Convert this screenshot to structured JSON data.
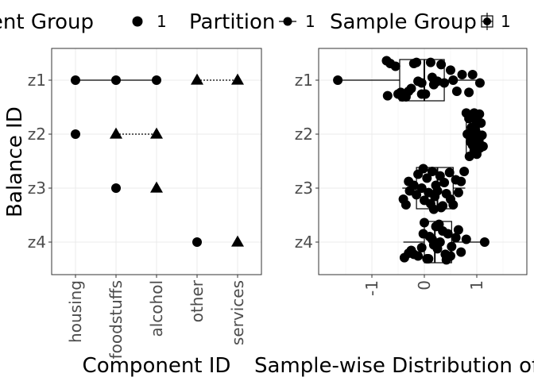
{
  "legend": {
    "component_group": {
      "title": "Component Group",
      "items": [
        "1"
      ]
    },
    "partition": {
      "title": "Partition",
      "items": [
        "1"
      ]
    },
    "sample_group": {
      "title": "Sample Group",
      "items": [
        "1"
      ]
    }
  },
  "chart_data": [
    {
      "type": "scatter",
      "title": "",
      "xlabel": "Component ID",
      "ylabel": "Balance ID",
      "x_categories": [
        "housing",
        "foodstuffs",
        "alcohol",
        "other",
        "services"
      ],
      "y_categories": [
        "z1",
        "z2",
        "z3",
        "z4"
      ],
      "grid": true,
      "points": [
        {
          "x": "housing",
          "y": "z1",
          "shape": "circle"
        },
        {
          "x": "foodstuffs",
          "y": "z1",
          "shape": "circle"
        },
        {
          "x": "alcohol",
          "y": "z1",
          "shape": "circle"
        },
        {
          "x": "other",
          "y": "z1",
          "shape": "triangle"
        },
        {
          "x": "services",
          "y": "z1",
          "shape": "triangle"
        },
        {
          "x": "housing",
          "y": "z2",
          "shape": "circle"
        },
        {
          "x": "foodstuffs",
          "y": "z2",
          "shape": "triangle"
        },
        {
          "x": "alcohol",
          "y": "z2",
          "shape": "triangle"
        },
        {
          "x": "foodstuffs",
          "y": "z3",
          "shape": "circle"
        },
        {
          "x": "alcohol",
          "y": "z3",
          "shape": "triangle"
        },
        {
          "x": "other",
          "y": "z4",
          "shape": "circle"
        },
        {
          "x": "services",
          "y": "z4",
          "shape": "triangle"
        }
      ],
      "segments": [
        {
          "y": "z1",
          "from": "housing",
          "to": "alcohol",
          "style": "solid"
        },
        {
          "y": "z1",
          "from": "other",
          "to": "services",
          "style": "dotted"
        },
        {
          "y": "z2",
          "from": "foodstuffs",
          "to": "alcohol",
          "style": "dotted"
        }
      ]
    },
    {
      "type": "box",
      "title": "",
      "xlabel": "Sample-wise Distribution of Ba",
      "ylabel": "",
      "xlim": [
        -2,
        2
      ],
      "x_ticks": [
        "-1",
        "0",
        "1"
      ],
      "y_categories": [
        "z1",
        "z2",
        "z3",
        "z4"
      ],
      "grid": true,
      "boxes": [
        {
          "y": "z1",
          "min": -1.65,
          "q1": -0.47,
          "median": 0.0,
          "q3": 0.38,
          "max": 1.08
        },
        {
          "y": "z2",
          "min": 0.75,
          "q1": 0.8,
          "median": 0.95,
          "q3": 1.05,
          "max": 1.12
        },
        {
          "y": "z3",
          "min": -0.42,
          "q1": -0.15,
          "median": 0.25,
          "q3": 0.55,
          "max": 0.78
        },
        {
          "y": "z4",
          "min": -0.4,
          "q1": 0.0,
          "median": 0.2,
          "q3": 0.52,
          "max": 1.18
        }
      ],
      "points": [
        {
          "y": "z1",
          "values": [
            -1.65,
            -0.72,
            -0.65,
            -0.55,
            -0.7,
            -0.45,
            -0.42,
            -0.5,
            -0.35,
            -0.2,
            -0.15,
            -0.12,
            -0.05,
            0.02,
            -0.3,
            -0.25,
            0.12,
            0.18,
            0.25,
            0.32,
            0.38,
            0.5,
            0.55,
            0.62,
            0.72,
            0.85,
            0.92,
            1.06,
            0.15,
            -0.05
          ],
          "offsets": [
            0.0,
            -0.35,
            -0.3,
            -0.25,
            0.28,
            0.22,
            0.3,
            0.25,
            0.3,
            -0.3,
            -0.32,
            0.02,
            0.05,
            0.25,
            0.2,
            0.15,
            -0.32,
            0.08,
            0.02,
            -0.28,
            0.05,
            -0.18,
            0.0,
            0.2,
            -0.1,
            0.22,
            -0.1,
            0.05,
            -0.05,
            0.25
          ]
        },
        {
          "y": "z2",
          "values": [
            0.8,
            0.95,
            1.05,
            0.85,
            1.0,
            1.08,
            0.9,
            0.98,
            1.1,
            1.02,
            0.88,
            0.92,
            1.06,
            0.95,
            1.0,
            0.86,
            0.97,
            1.04,
            0.93,
            1.12,
            0.82,
            0.99
          ],
          "offsets": [
            -0.38,
            -0.38,
            -0.36,
            -0.28,
            -0.22,
            -0.2,
            -0.12,
            -0.05,
            0.02,
            0.08,
            0.14,
            0.2,
            0.25,
            0.3,
            0.36,
            0.4,
            -0.15,
            0.12,
            0.05,
            0.22,
            0.0,
            -0.3
          ]
        },
        {
          "y": "z3",
          "values": [
            -0.4,
            -0.35,
            -0.3,
            -0.28,
            -0.2,
            -0.15,
            -0.12,
            -0.05,
            0.0,
            0.05,
            0.08,
            0.12,
            0.15,
            0.2,
            0.22,
            0.25,
            0.3,
            0.35,
            0.38,
            0.42,
            0.48,
            0.5,
            0.55,
            0.6,
            0.65,
            0.7,
            0.76,
            -0.02,
            0.32,
            0.18
          ],
          "offsets": [
            0.2,
            0.3,
            -0.12,
            0.05,
            -0.05,
            0.12,
            -0.25,
            0.0,
            0.22,
            -0.18,
            0.08,
            0.28,
            -0.3,
            0.15,
            -0.05,
            0.05,
            -0.22,
            0.32,
            -0.1,
            0.1,
            -0.28,
            0.2,
            0.3,
            -0.15,
            0.08,
            -0.12,
            -0.3,
            -0.35,
            0.35,
            0.38
          ]
        },
        {
          "y": "z4",
          "values": [
            -0.38,
            -0.3,
            -0.25,
            -0.2,
            -0.12,
            -0.05,
            0.0,
            0.05,
            0.1,
            0.15,
            0.18,
            0.22,
            0.25,
            0.3,
            0.35,
            0.4,
            0.45,
            0.5,
            0.52,
            0.6,
            0.65,
            0.7,
            0.8,
            1.15,
            0.08,
            0.28,
            0.42,
            -0.02
          ],
          "offsets": [
            0.28,
            0.2,
            0.15,
            0.22,
            0.25,
            0.1,
            -0.35,
            0.3,
            -0.1,
            -0.05,
            0.05,
            -0.28,
            0.12,
            0.0,
            -0.2,
            0.22,
            -0.15,
            0.25,
            0.08,
            -0.08,
            -0.22,
            0.18,
            -0.05,
            0.0,
            0.3,
            -0.32,
            0.32,
            -0.15
          ]
        }
      ]
    }
  ]
}
